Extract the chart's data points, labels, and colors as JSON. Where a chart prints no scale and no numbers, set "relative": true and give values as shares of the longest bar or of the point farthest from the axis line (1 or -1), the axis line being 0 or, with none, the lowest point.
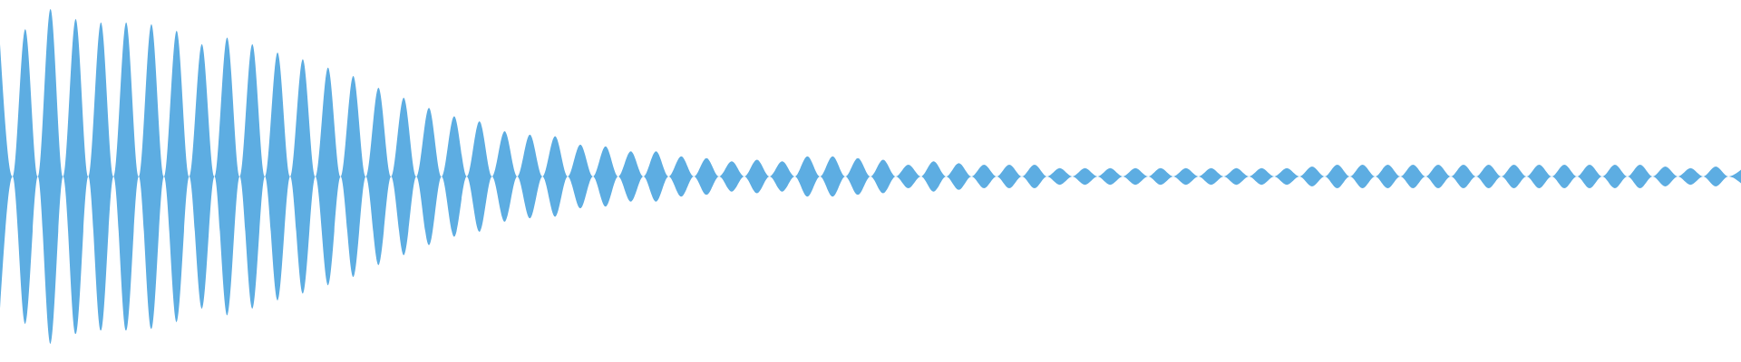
{
  "chart_data": {
    "type": "area",
    "relative": true,
    "color": "#5dade2",
    "categories": [
      null,
      null,
      null,
      null,
      null,
      null,
      null,
      null,
      null,
      null,
      null,
      null,
      null,
      null,
      null,
      null,
      null,
      null,
      null,
      null,
      null,
      null,
      null,
      null,
      null,
      null,
      null,
      null,
      null,
      null,
      null,
      null,
      null,
      null,
      null,
      null,
      null,
      null,
      null,
      null,
      null,
      null,
      null,
      null,
      null,
      null,
      null,
      null,
      null,
      null,
      null,
      null,
      null,
      null,
      null,
      null,
      null,
      null,
      null,
      null,
      null,
      null,
      null,
      null,
      null,
      null,
      null,
      null,
      null,
      null,
      null,
      null,
      null,
      null,
      null,
      null,
      null,
      null,
      null,
      null,
      null,
      null,
      null,
      null,
      null,
      null,
      null,
      null,
      null,
      null,
      null,
      null,
      null,
      null,
      null,
      null,
      null,
      null,
      null,
      null,
      null,
      null,
      null,
      null,
      null,
      null,
      null,
      null,
      null,
      null,
      null,
      null,
      null,
      null,
      null,
      null,
      null,
      null,
      null,
      null,
      null,
      null,
      null,
      null,
      null,
      null,
      null,
      null,
      null,
      null,
      null,
      null,
      null,
      null,
      null,
      null,
      null,
      null,
      null
    ],
    "values": [
      0.79,
      0,
      0.88,
      0,
      1,
      0,
      0.94,
      0,
      0.92,
      0,
      0.92,
      0,
      0.91,
      0,
      0.87,
      0,
      0.79,
      0,
      0.83,
      0,
      0.79,
      0,
      0.74,
      0,
      0.7,
      0,
      0.65,
      0,
      0.6,
      0,
      0.53,
      0,
      0.47,
      0,
      0.41,
      0,
      0.36,
      0,
      0.33,
      0,
      0.27,
      0,
      0.25,
      0,
      0.24,
      0,
      0.19,
      0,
      0.18,
      0,
      0.15,
      0,
      0.15,
      0,
      0.12,
      0,
      0.11,
      0,
      0.09,
      0,
      0.1,
      0,
      0.09,
      0,
      0.12,
      0,
      0.12,
      0,
      0.11,
      0,
      0.1,
      0,
      0.07,
      0,
      0.09,
      0,
      0.08,
      0,
      0.07,
      0,
      0.07,
      0,
      0.07,
      0,
      0.05,
      0,
      0.05,
      0,
      0.05,
      0,
      0.05,
      0,
      0.05,
      0,
      0.05,
      0,
      0.05,
      0,
      0.05,
      0,
      0.05,
      0,
      0.05,
      0,
      0.06,
      0,
      0.07,
      0,
      0.07,
      0,
      0.07,
      0,
      0.07,
      0,
      0.07,
      0,
      0.07,
      0,
      0.07,
      0,
      0.07,
      0,
      0.07,
      0,
      0.07,
      0,
      0.07,
      0,
      0.07,
      0,
      0.07,
      0,
      0.06,
      0,
      0.05,
      0,
      0.06,
      0,
      0.04
    ]
  }
}
